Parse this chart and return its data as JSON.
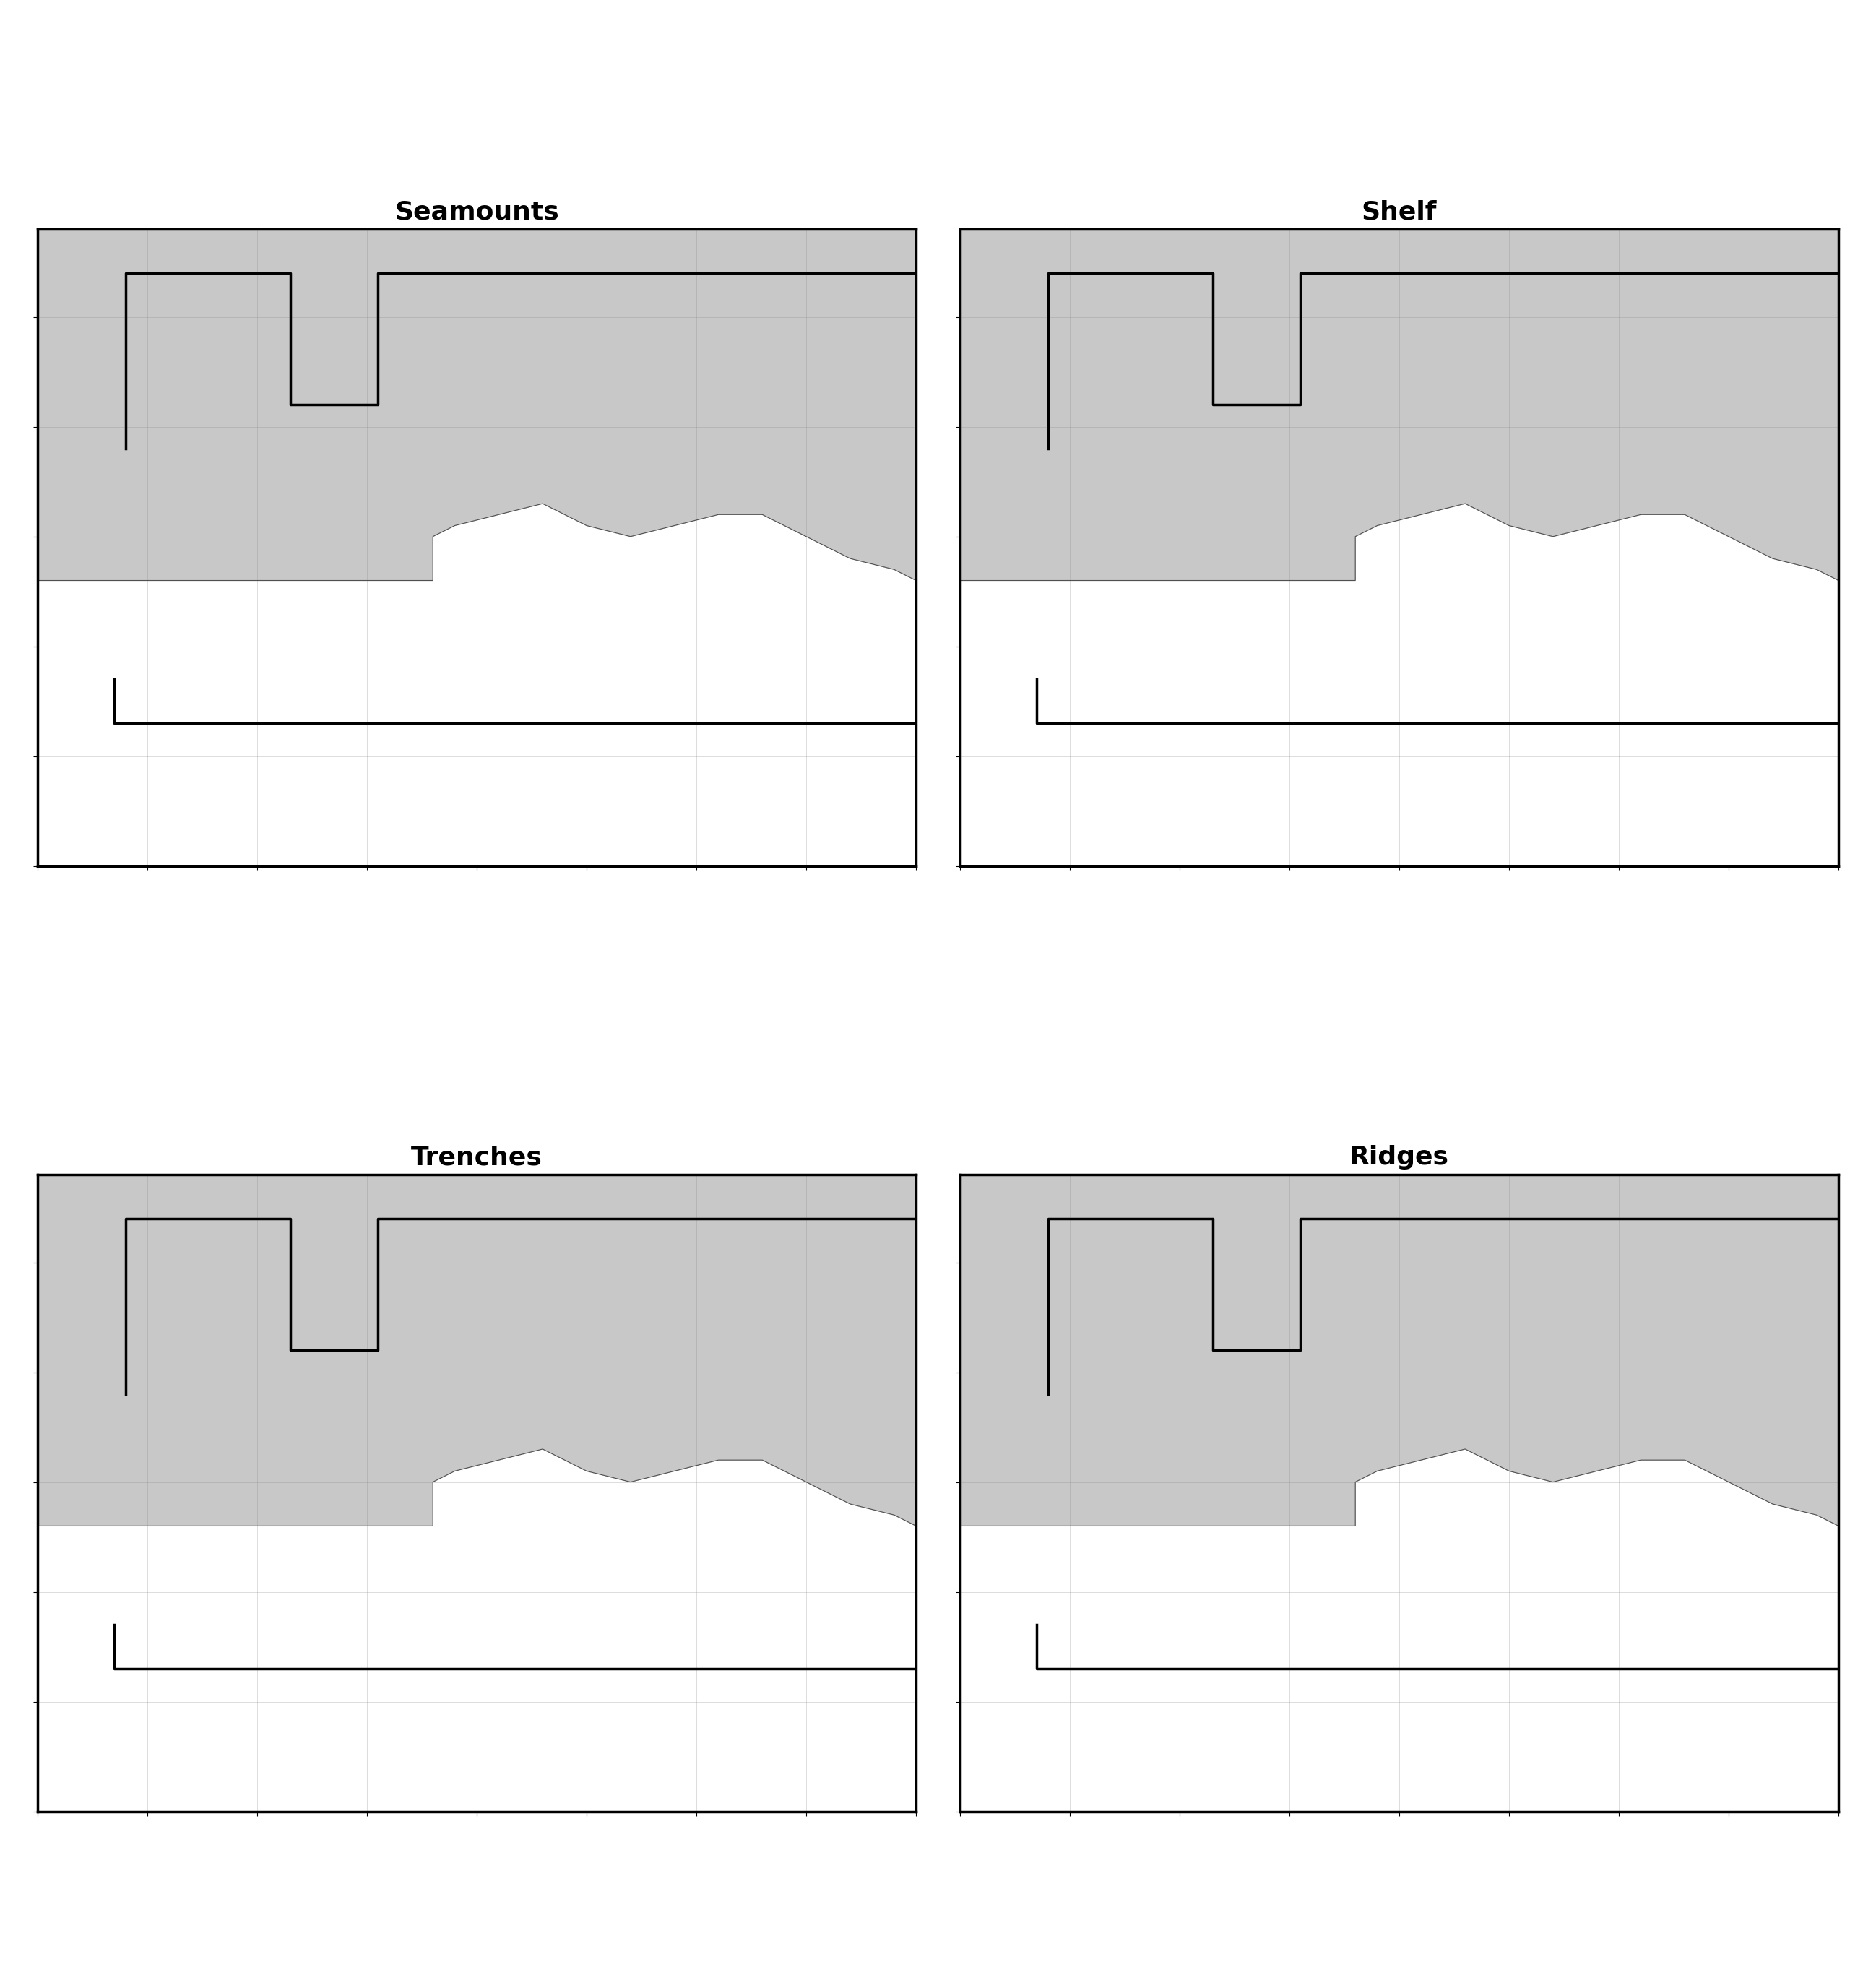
{
  "titles": [
    "Seamounts",
    "Shelf",
    "Trenches",
    "Ridges"
  ],
  "title_fontsize": 26,
  "title_fontweight": "bold",
  "figure_bg": "#ffffff",
  "map_bg_ocean": "#ffffff",
  "map_bg_land": "#c8c8c8",
  "highlight_facecolor": "#b8d8f0",
  "highlight_edgecolor": "#4488bb",
  "highlight_lw": 0.5,
  "border_color": "#000000",
  "border_lw": 2.5,
  "coastline_color": "#505050",
  "coastline_lw": 0.8,
  "eez_color": "#000000",
  "eez_lw": 2.5,
  "lon_min": -95,
  "lon_max": -55,
  "lat_min": -5,
  "lat_max": 24,
  "scalebar_fontsize": 8,
  "compass_fontsize": 9,
  "gridline_lw": 0.4,
  "gridline_color": "#888888",
  "gridline_alpha": 0.5,
  "dot_color": "#6aade4",
  "dot_size": 1.5
}
